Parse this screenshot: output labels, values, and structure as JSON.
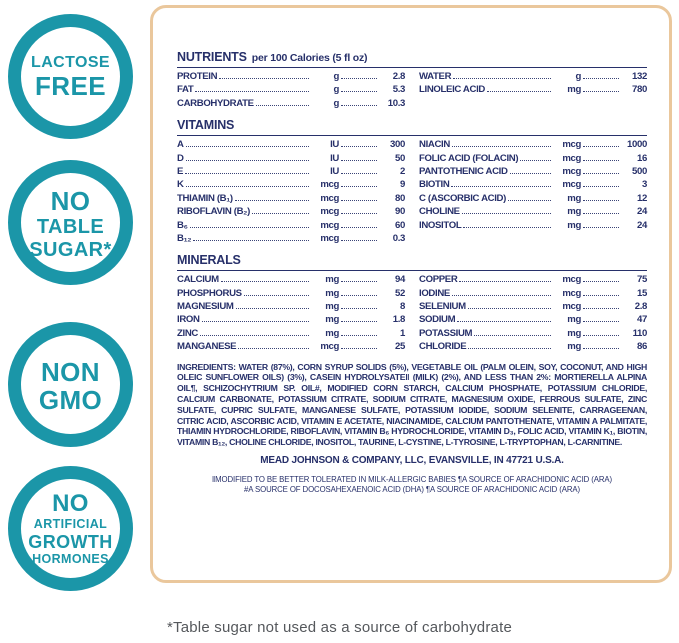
{
  "badges": [
    {
      "id": "lactose-free",
      "lines": [
        {
          "text": "LACTOSE",
          "size": "md"
        },
        {
          "text": "FREE",
          "size": "xl"
        }
      ]
    },
    {
      "id": "no-table-sugar",
      "lines": [
        {
          "text": "NO",
          "size": "xl"
        },
        {
          "text": "TABLE",
          "size": "lg"
        },
        {
          "text": "SUGAR*",
          "size": "lg"
        }
      ]
    },
    {
      "id": "non-gmo",
      "lines": [
        {
          "text": "NON",
          "size": "xl"
        },
        {
          "text": "GMO",
          "size": "xl"
        }
      ]
    },
    {
      "id": "no-artificial-growth-hormones",
      "lines": [
        {
          "text": "NO",
          "size": "xl2"
        },
        {
          "text": "ARTIFICIAL",
          "size": "sm"
        },
        {
          "text": "GROWTH",
          "size": "md2"
        },
        {
          "text": "HORMONES",
          "size": "sm"
        }
      ]
    }
  ],
  "panel": {
    "nutrients": {
      "title": "NUTRIENTS",
      "subtitle": "per 100 Calories (5 fl oz)",
      "left": [
        {
          "name": "PROTEIN",
          "unit": "g",
          "value": "2.8"
        },
        {
          "name": "FAT",
          "unit": "g",
          "value": "5.3"
        },
        {
          "name": "CARBOHYDRATE",
          "unit": "g",
          "value": "10.3"
        }
      ],
      "right": [
        {
          "name": "WATER",
          "unit": "g",
          "value": "132"
        },
        {
          "name": "LINOLEIC ACID",
          "unit": "mg",
          "value": "780"
        }
      ]
    },
    "vitamins": {
      "title": "VITAMINS",
      "left": [
        {
          "name": "A",
          "unit": "IU",
          "value": "300"
        },
        {
          "name": "D",
          "unit": "IU",
          "value": "50"
        },
        {
          "name": "E",
          "unit": "IU",
          "value": "2"
        },
        {
          "name": "K",
          "unit": "mcg",
          "value": "9"
        },
        {
          "name": "THIAMIN (B₁)",
          "unit": "mcg",
          "value": "80"
        },
        {
          "name": "RIBOFLAVIN (B₂)",
          "unit": "mcg",
          "value": "90"
        },
        {
          "name": "B₆",
          "unit": "mcg",
          "value": "60"
        },
        {
          "name": "B₁₂",
          "unit": "mcg",
          "value": "0.3"
        }
      ],
      "right": [
        {
          "name": "NIACIN",
          "unit": "mcg",
          "value": "1000"
        },
        {
          "name": "FOLIC ACID (FOLACIN)",
          "unit": "mcg",
          "value": "16"
        },
        {
          "name": "PANTOTHENIC ACID",
          "unit": "mcg",
          "value": "500"
        },
        {
          "name": "BIOTIN",
          "unit": "mcg",
          "value": "3"
        },
        {
          "name": "C (ASCORBIC ACID)",
          "unit": "mg",
          "value": "12"
        },
        {
          "name": "CHOLINE",
          "unit": "mg",
          "value": "24"
        },
        {
          "name": "INOSITOL",
          "unit": "mg",
          "value": "24"
        }
      ]
    },
    "minerals": {
      "title": "MINERALS",
      "left": [
        {
          "name": "CALCIUM",
          "unit": "mg",
          "value": "94"
        },
        {
          "name": "PHOSPHORUS",
          "unit": "mg",
          "value": "52"
        },
        {
          "name": "MAGNESIUM",
          "unit": "mg",
          "value": "8"
        },
        {
          "name": "IRON",
          "unit": "mg",
          "value": "1.8"
        },
        {
          "name": "ZINC",
          "unit": "mg",
          "value": "1"
        },
        {
          "name": "MANGANESE",
          "unit": "mcg",
          "value": "25"
        }
      ],
      "right": [
        {
          "name": "COPPER",
          "unit": "mcg",
          "value": "75"
        },
        {
          "name": "IODINE",
          "unit": "mcg",
          "value": "15"
        },
        {
          "name": "SELENIUM",
          "unit": "mcg",
          "value": "2.8"
        },
        {
          "name": "SODIUM",
          "unit": "mg",
          "value": "47"
        },
        {
          "name": "POTASSIUM",
          "unit": "mg",
          "value": "110"
        },
        {
          "name": "CHLORIDE",
          "unit": "mg",
          "value": "86"
        }
      ]
    },
    "ingredients_label": "INGREDIENTS:",
    "ingredients_text": "WATER (87%), CORN SYRUP SOLIDS (5%), VEGETABLE OIL (PALM OLEIN, SOY, COCONUT, AND HIGH OLEIC SUNFLOWER OILS) (3%), CASEIN HYDROLYSATE‖ (MILK) (2%), AND LESS THAN 2%: MORTIERELLA ALPINA OIL¶, SCHIZOCHYTRIUM SP. OIL#, MODIFIED CORN STARCH, CALCIUM PHOSPHATE, POTASSIUM CHLORIDE, CALCIUM CARBONATE, POTASSIUM CITRATE, SODIUM CITRATE, MAGNESIUM OXIDE, FERROUS SULFATE, ZINC SULFATE, CUPRIC SULFATE, MANGANESE SULFATE, POTASSIUM IODIDE, SODIUM SELENITE, CARRAGEENAN, CITRIC ACID, ASCORBIC ACID, VITAMIN E ACETATE, NIACINAMIDE, CALCIUM PANTOTHENATE, VITAMIN A PALMITATE, THIAMIN HYDROCHLORIDE, RIBOFLAVIN, VITAMIN B₆ HYDROCHLORIDE, VITAMIN D₃, FOLIC ACID, VITAMIN K₁, BIOTIN, VITAMIN B₁₂, CHOLINE CHLORIDE, INOSITOL, TAURINE, L-CYSTINE, L-TYROSINE, L-TRYPTOPHAN, L-CARNITINE.",
    "manufacturer": "MEAD JOHNSON & COMPANY, LLC, EVANSVILLE, IN 47721 U.S.A.",
    "footnote_line1": "‖MODIFIED TO BE BETTER TOLERATED IN MILK-ALLERGIC BABIES  ¶A SOURCE OF ARACHIDONIC ACID (ARA)",
    "footnote_line2": "#A SOURCE OF DOCOSAHEXAENOIC ACID (DHA) ¶A SOURCE OF ARACHIDONIC ACID (ARA)"
  },
  "caption": "*Table sugar not used as a source of carbohydrate",
  "colors": {
    "teal": "#1B96A8",
    "navy": "#27306A",
    "border_tan": "#EAC79C",
    "caption_gray": "#55585C"
  }
}
